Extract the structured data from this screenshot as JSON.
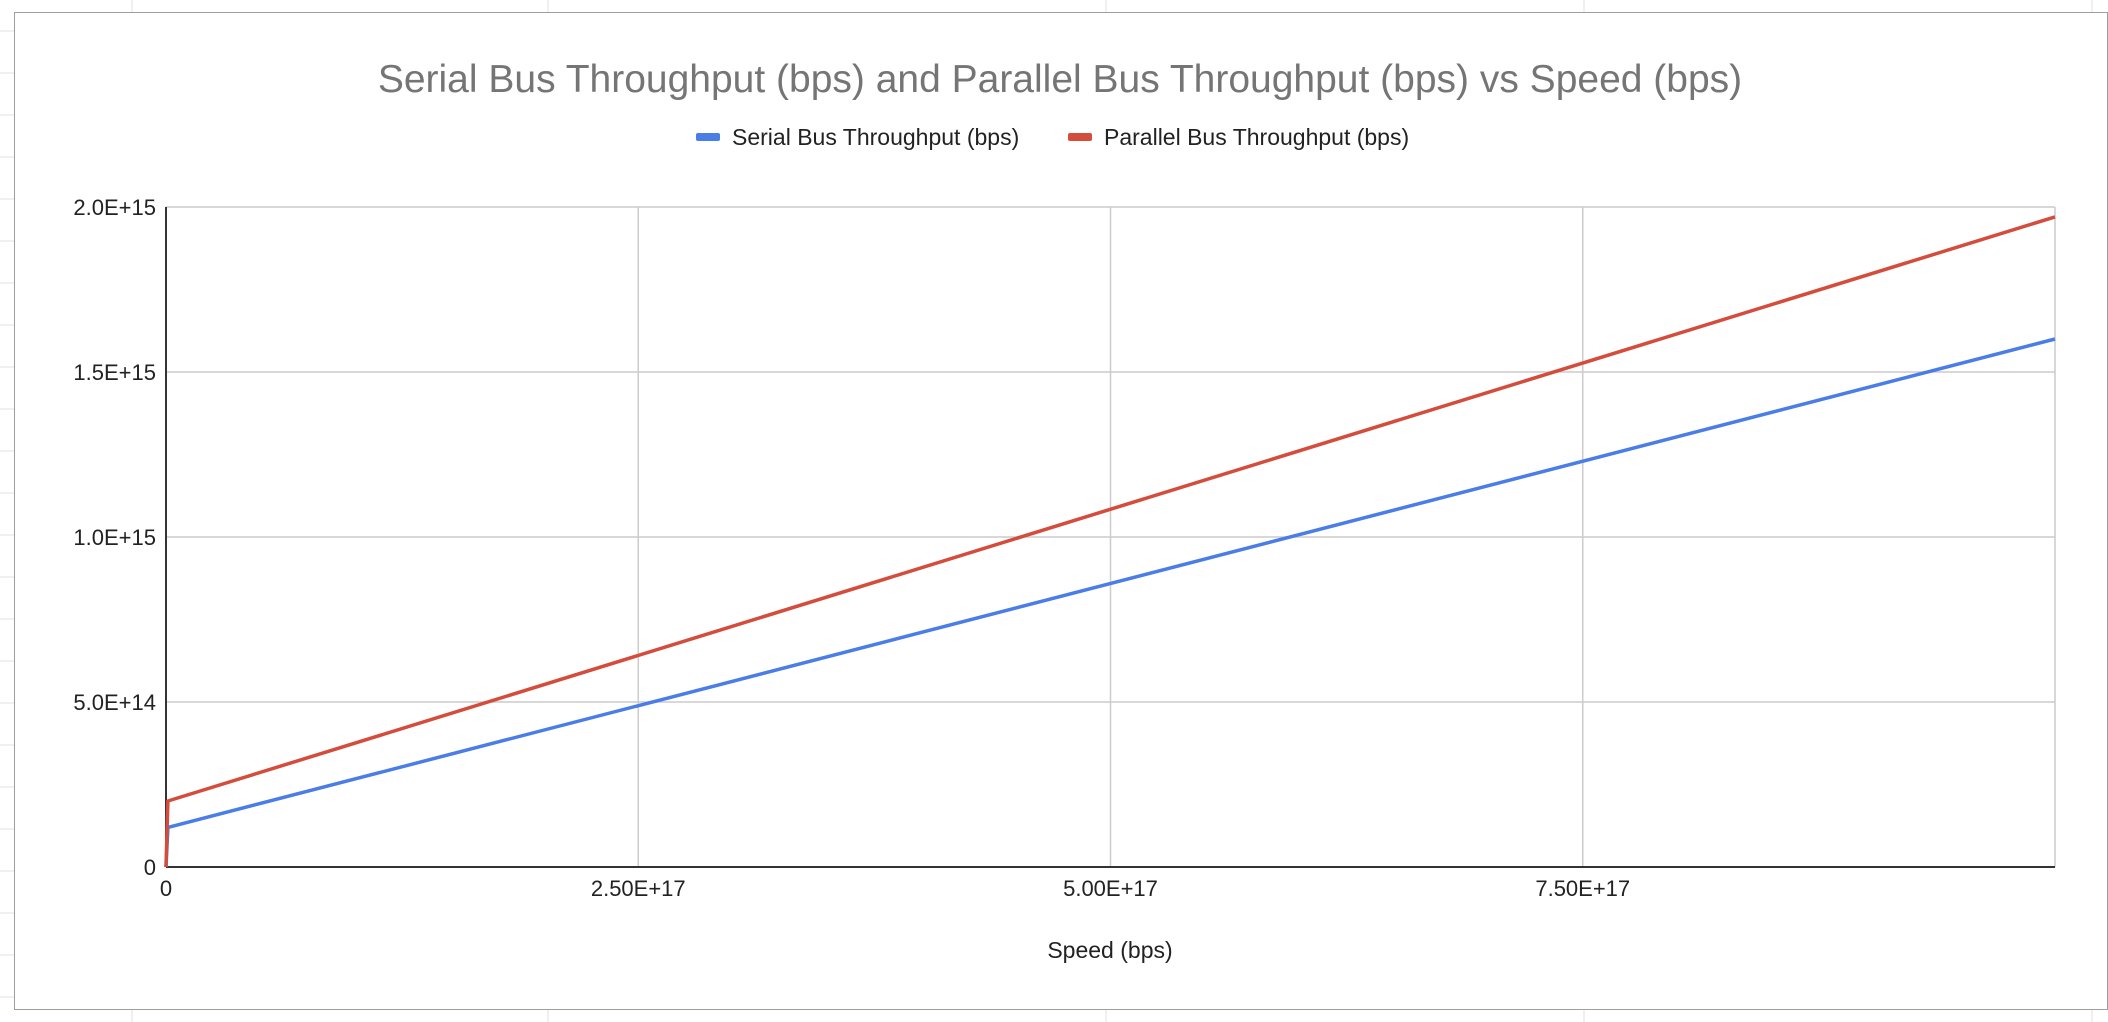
{
  "colors": {
    "serial": "#4a7ee6",
    "parallel": "#d44c3c",
    "grid": "#cccccc",
    "axis": "#333333",
    "sheet_grid": "#e2e2e2"
  },
  "chart_data": {
    "type": "line",
    "title": "Serial Bus Throughput (bps) and Parallel Bus Throughput (bps) vs Speed (bps)",
    "xlabel": "Speed (bps)",
    "ylabel": "",
    "xlim": [
      0,
      1e+18
    ],
    "ylim": [
      0,
      2000000000000000.0
    ],
    "grid": true,
    "legend_position": "top",
    "x_ticks": [
      {
        "value": 0,
        "label": "0"
      },
      {
        "value": 2.5e+17,
        "label": "2.50E+17"
      },
      {
        "value": 5e+17,
        "label": "5.00E+17"
      },
      {
        "value": 7.5e+17,
        "label": "7.50E+17"
      }
    ],
    "y_ticks": [
      {
        "value": 0,
        "label": "0"
      },
      {
        "value": 500000000000000.0,
        "label": "5.0E+14"
      },
      {
        "value": 1000000000000000.0,
        "label": "1.0E+15"
      },
      {
        "value": 1500000000000000.0,
        "label": "1.5E+15"
      },
      {
        "value": 2000000000000000.0,
        "label": "2.0E+15"
      }
    ],
    "series": [
      {
        "name": "Serial Bus Throughput (bps)",
        "color": "#4a7ee6",
        "x": [
          0,
          1000000000000000.0,
          1e+18
        ],
        "y": [
          0,
          120000000000000.0,
          1600000000000000.0
        ]
      },
      {
        "name": "Parallel Bus Throughput (bps)",
        "color": "#d44c3c",
        "x": [
          0,
          1000000000000000.0,
          1e+18
        ],
        "y": [
          0,
          200000000000000.0,
          1970000000000000.0
        ]
      }
    ]
  }
}
